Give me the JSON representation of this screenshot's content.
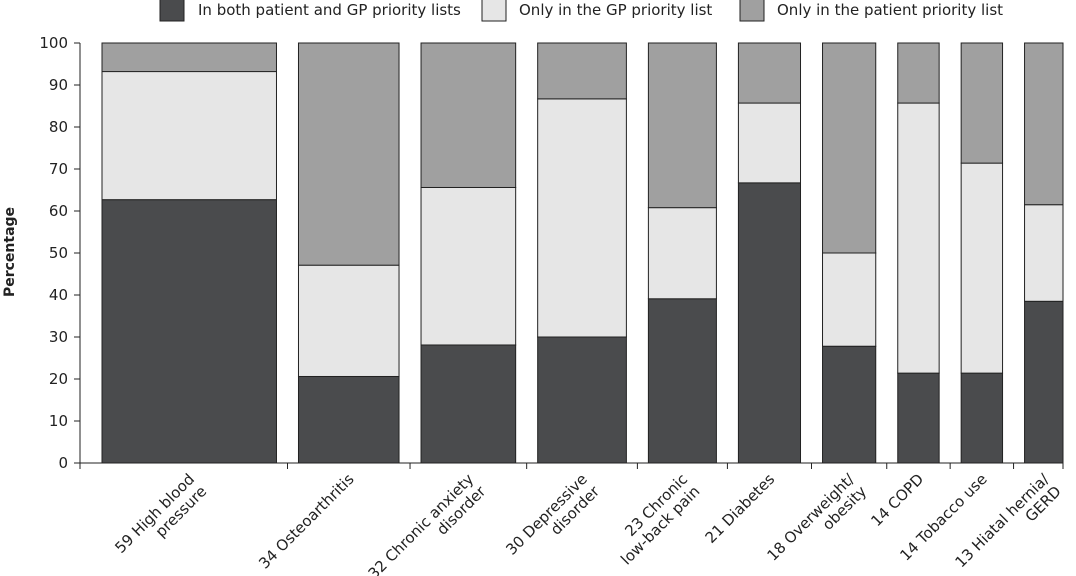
{
  "chart_data": {
    "type": "bar",
    "stacked": true,
    "stack_total": 100,
    "variable_width": true,
    "ylabel": "Percentage",
    "xlabel": "",
    "ylim": [
      0,
      100
    ],
    "yticks": [
      0,
      10,
      20,
      30,
      40,
      50,
      60,
      70,
      80,
      90,
      100
    ],
    "grid": false,
    "legend_position": "top",
    "categories": [
      {
        "label_lines": [
          "59 High blood",
          "pressure"
        ],
        "count": 59
      },
      {
        "label_lines": [
          "34 Osteoarthritis"
        ],
        "count": 34
      },
      {
        "label_lines": [
          "32 Chronic anxiety",
          "disorder"
        ],
        "count": 32
      },
      {
        "label_lines": [
          "30 Depressive",
          "disorder"
        ],
        "count": 30
      },
      {
        "label_lines": [
          "23 Chronic",
          "low-back pain"
        ],
        "count": 23
      },
      {
        "label_lines": [
          "21 Diabetes"
        ],
        "count": 21
      },
      {
        "label_lines": [
          "18 Overweight/",
          "obesity"
        ],
        "count": 18
      },
      {
        "label_lines": [
          "14 COPD"
        ],
        "count": 14
      },
      {
        "label_lines": [
          "14 Tobacco use"
        ],
        "count": 14
      },
      {
        "label_lines": [
          "13 Hiatal hernia/",
          "GERD"
        ],
        "count": 13
      }
    ],
    "series": [
      {
        "name": "In both patient and GP priority lists",
        "color": "#4a4b4d",
        "values": [
          62.7,
          20.6,
          28.1,
          30.0,
          39.1,
          66.7,
          27.8,
          21.4,
          21.4,
          38.5
        ]
      },
      {
        "name": "Only in the GP priority list",
        "color": "#e6e6e6",
        "values": [
          30.5,
          26.5,
          37.5,
          56.7,
          21.7,
          19.0,
          22.2,
          64.3,
          50.0,
          23.0
        ]
      },
      {
        "name": "Only in the patient priority list",
        "color": "#a0a0a0",
        "values": [
          6.8,
          52.9,
          34.4,
          13.3,
          39.2,
          14.3,
          50.0,
          14.3,
          28.6,
          38.5
        ]
      }
    ]
  }
}
